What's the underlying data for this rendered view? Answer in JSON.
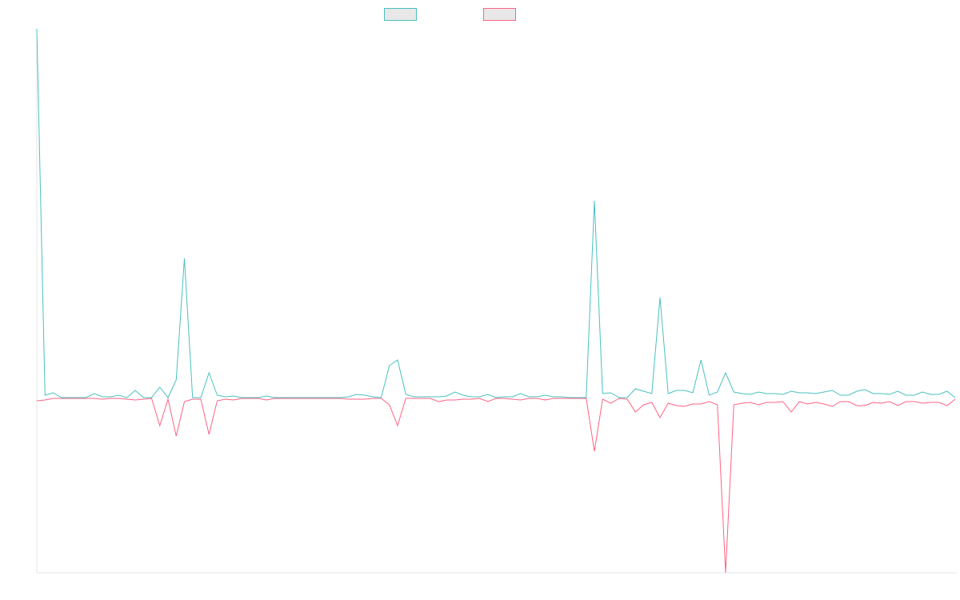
{
  "chart_data": {
    "type": "line",
    "categories": [
      null,
      null,
      null,
      null,
      null,
      null,
      null,
      null,
      null,
      null,
      null,
      null,
      null,
      null,
      null,
      null,
      null,
      null,
      null,
      null,
      null,
      null,
      null,
      null,
      null,
      null,
      null,
      null,
      null,
      null,
      null,
      null,
      null,
      null,
      null,
      null,
      null,
      null,
      null,
      null,
      null,
      null,
      null,
      null,
      null,
      null,
      null,
      null,
      null,
      null,
      null,
      null,
      null,
      null,
      null,
      null,
      null,
      null,
      null,
      null,
      null,
      null,
      null,
      null,
      null,
      null,
      null,
      null,
      null,
      null,
      null,
      null,
      null,
      null,
      null,
      null,
      null,
      null,
      null,
      null,
      null,
      null,
      null,
      null,
      null,
      null,
      null,
      null,
      null,
      null,
      null,
      null,
      null,
      null,
      null,
      null,
      null,
      null,
      null,
      null,
      null,
      null,
      null,
      null,
      null,
      null,
      null,
      null,
      null,
      null,
      null,
      null,
      null
    ],
    "series": [
      {
        "color": "#4bc0c0",
        "values": [
          462,
          4,
          7,
          1,
          1,
          1,
          1,
          6,
          2,
          2,
          4,
          1,
          10,
          1,
          1,
          14,
          1,
          23,
          175,
          1,
          1,
          32,
          4,
          2,
          3,
          1,
          1,
          1,
          3,
          1,
          1,
          1,
          1,
          1,
          1,
          1,
          1,
          1,
          2,
          5,
          4,
          2,
          1,
          41,
          48,
          5,
          2,
          2,
          2,
          2,
          3,
          8,
          4,
          2,
          2,
          5,
          1,
          2,
          2,
          6,
          2,
          2,
          4,
          2,
          2,
          1,
          1,
          1,
          247,
          6,
          7,
          1,
          1,
          12,
          9,
          6,
          126,
          6,
          10,
          10,
          7,
          48,
          4,
          8,
          32,
          8,
          6,
          5,
          8,
          6,
          6,
          5,
          9,
          7,
          7,
          6,
          8,
          10,
          4,
          4,
          9,
          11,
          6,
          6,
          5,
          9,
          4,
          4,
          8,
          5,
          5,
          9,
          1
        ]
      },
      {
        "color": "#ff6384",
        "values": [
          -3,
          -2,
          0,
          0,
          0,
          0,
          0,
          0,
          -1,
          0,
          0,
          -1,
          -2,
          -1,
          0,
          -34,
          -1,
          -47,
          -4,
          -1,
          -1,
          -45,
          -3,
          -1,
          -2,
          0,
          0,
          0,
          -2,
          0,
          0,
          0,
          0,
          0,
          0,
          0,
          0,
          0,
          -1,
          -1,
          -1,
          0,
          0,
          -8,
          -34,
          0,
          0,
          0,
          0,
          -4,
          -2,
          -2,
          -1,
          -1,
          0,
          -4,
          0,
          0,
          -1,
          -2,
          0,
          0,
          -2,
          0,
          0,
          0,
          0,
          0,
          -66,
          -1,
          -6,
          0,
          -1,
          -17,
          -8,
          -5,
          -24,
          -6,
          -9,
          -10,
          -7,
          -7,
          -4,
          -8,
          -218,
          -8,
          -6,
          -5,
          -8,
          -5,
          -5,
          -4,
          -17,
          -4,
          -7,
          -5,
          -7,
          -10,
          -4,
          -4,
          -9,
          -9,
          -5,
          -6,
          -4,
          -9,
          -4,
          -4,
          -6,
          -5,
          -5,
          -9,
          -1
        ]
      }
    ],
    "ylim": [
      -218,
      462
    ]
  }
}
